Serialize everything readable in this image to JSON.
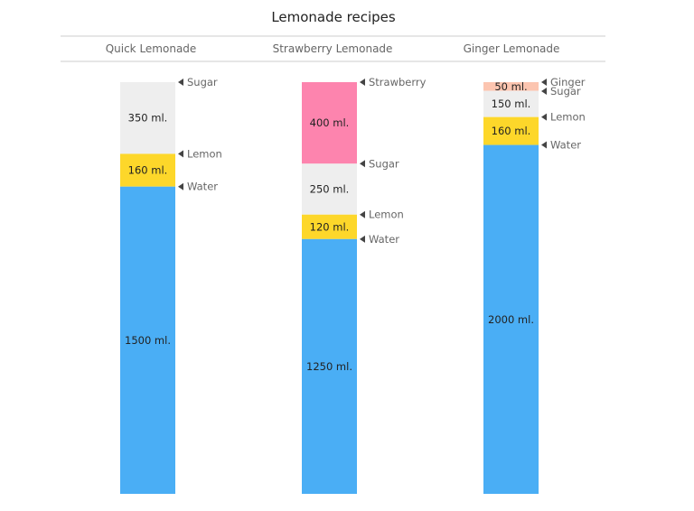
{
  "chart_data": {
    "type": "bar",
    "stacking": "percent",
    "title": "Lemonade recipes",
    "unit": "ml.",
    "colors": {
      "Water": "#4aaef5",
      "Lemon": "#fdd72a",
      "Sugar": "#eeeeee",
      "Strawberry": "#fd84ae",
      "Ginger": "#fcc5b0"
    },
    "categories": [
      "Quick Lemonade",
      "Strawberry Lemonade",
      "Ginger Lemonade"
    ],
    "recipes": [
      {
        "name": "Quick Lemonade",
        "ingredients": [
          {
            "name": "Sugar",
            "value": 350
          },
          {
            "name": "Lemon",
            "value": 160
          },
          {
            "name": "Water",
            "value": 1500
          }
        ]
      },
      {
        "name": "Strawberry Lemonade",
        "ingredients": [
          {
            "name": "Strawberry",
            "value": 400
          },
          {
            "name": "Sugar",
            "value": 250
          },
          {
            "name": "Lemon",
            "value": 120
          },
          {
            "name": "Water",
            "value": 1250
          }
        ]
      },
      {
        "name": "Ginger Lemonade",
        "ingredients": [
          {
            "name": "Ginger",
            "value": 50
          },
          {
            "name": "Sugar",
            "value": 150
          },
          {
            "name": "Lemon",
            "value": 160
          },
          {
            "name": "Water",
            "value": 2000
          }
        ]
      }
    ]
  }
}
